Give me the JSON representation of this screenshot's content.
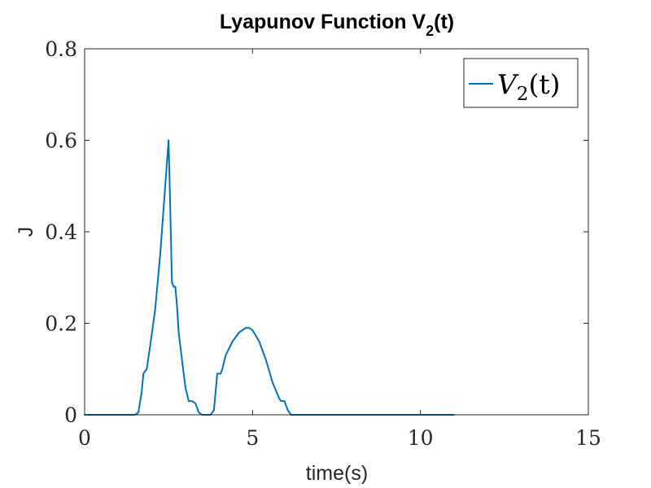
{
  "chart_data": {
    "type": "line",
    "title": "Lyapunov Function V",
    "title_subscript": "2",
    "title_suffix": "(t)",
    "xlabel": "time(s)",
    "ylabel": "J",
    "xlim": [
      0,
      15
    ],
    "ylim": [
      0,
      0.8
    ],
    "xticks": [
      0,
      5,
      10,
      15
    ],
    "xtick_labels": [
      "0",
      "5",
      "10",
      "15"
    ],
    "yticks": [
      0,
      0.2,
      0.4,
      0.6,
      0.8
    ],
    "ytick_labels": [
      "0",
      "0.2",
      "0.4",
      "0.6",
      "0.8"
    ],
    "grid": false,
    "legend": {
      "location": "top-right",
      "label_main": "V",
      "label_subscript": "2",
      "label_suffix": "(t)"
    },
    "colors": {
      "series": "#0072BD",
      "axes": "#262626"
    },
    "series": [
      {
        "name": "V2(t)",
        "x": [
          0,
          1.5,
          1.6,
          1.7,
          1.75,
          1.85,
          1.95,
          2.1,
          2.25,
          2.4,
          2.5,
          2.55,
          2.6,
          2.65,
          2.7,
          2.75,
          2.8,
          2.9,
          3.0,
          3.1,
          3.2,
          3.3,
          3.4,
          3.5,
          3.6,
          3.75,
          3.85,
          3.95,
          4.0,
          4.05,
          4.1,
          4.2,
          4.4,
          4.6,
          4.8,
          4.9,
          5.0,
          5.2,
          5.4,
          5.6,
          5.8,
          5.85,
          5.95,
          6.05,
          6.15,
          6.3,
          8,
          10,
          11
        ],
        "y": [
          0,
          0,
          0.005,
          0.05,
          0.09,
          0.1,
          0.15,
          0.23,
          0.35,
          0.5,
          0.6,
          0.45,
          0.29,
          0.28,
          0.28,
          0.24,
          0.18,
          0.12,
          0.06,
          0.03,
          0.03,
          0.025,
          0.005,
          0,
          0,
          0,
          0.01,
          0.09,
          0.09,
          0.09,
          0.1,
          0.13,
          0.16,
          0.18,
          0.19,
          0.19,
          0.185,
          0.16,
          0.12,
          0.07,
          0.035,
          0.03,
          0.03,
          0.01,
          0,
          0,
          0,
          0,
          0
        ]
      }
    ]
  }
}
